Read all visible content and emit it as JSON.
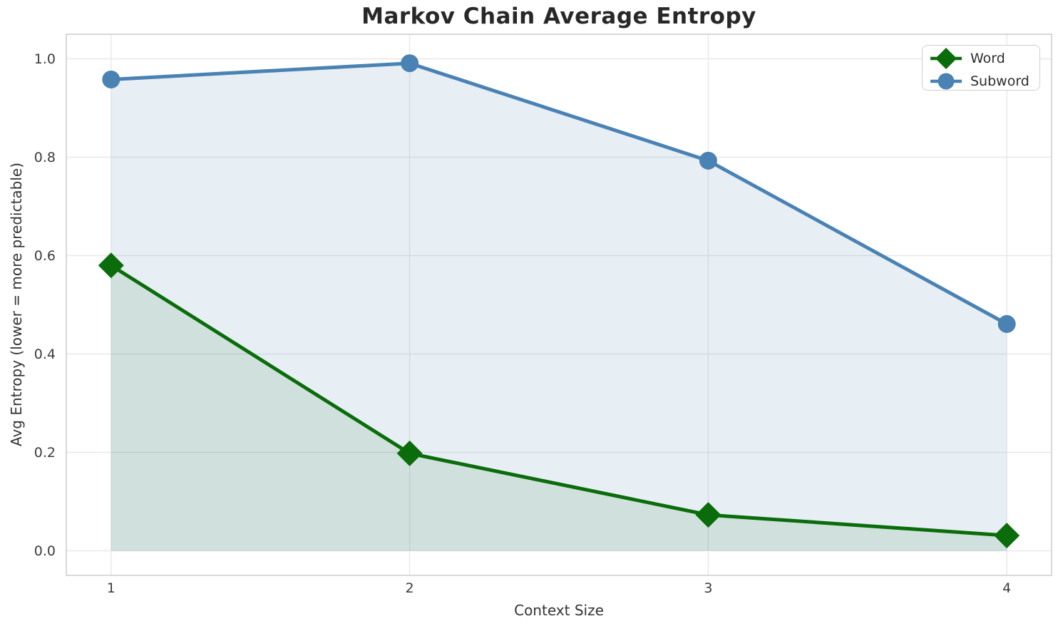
{
  "title": "Markov Chain Average Entropy",
  "chart_data": {
    "type": "line",
    "title": "Markov Chain Average Entropy",
    "xlabel": "Context Size",
    "ylabel": "Avg Entropy (lower = more predictable)",
    "x": [
      1,
      2,
      3,
      4
    ],
    "series": [
      {
        "name": "Word",
        "values": [
          0.58,
          0.198,
          0.073,
          0.031
        ],
        "color": "#0a6c0a",
        "fill_color": "rgba(10,108,10,0.10)",
        "marker": "diamond"
      },
      {
        "name": "Subword",
        "values": [
          0.958,
          0.991,
          0.793,
          0.461
        ],
        "color": "#4a82b4",
        "fill_color": "rgba(70,130,180,0.13)",
        "marker": "circle"
      }
    ],
    "xticks": [
      "1",
      "2",
      "3",
      "4"
    ],
    "yticks": [
      "0.0",
      "0.2",
      "0.4",
      "0.6",
      "0.8",
      "1.0"
    ],
    "xlim": [
      0.85,
      4.15
    ],
    "ylim": [
      -0.05,
      1.05
    ],
    "grid": true,
    "grid_color": "#e8e8e8",
    "spine_color": "#cccccc",
    "legend_position": "upper right",
    "fill_baseline": 0
  }
}
